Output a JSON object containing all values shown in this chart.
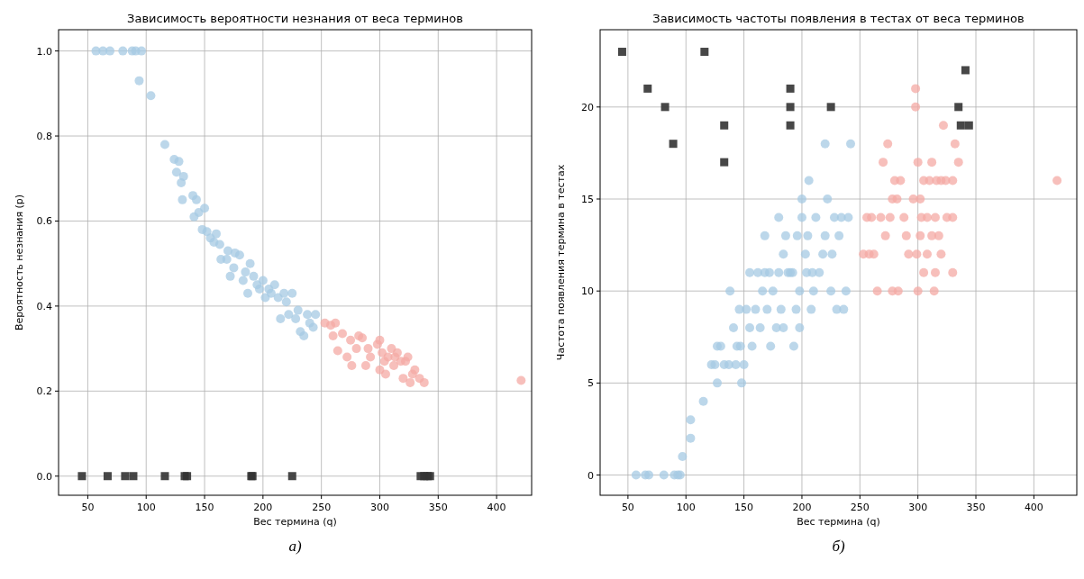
{
  "chart_data": [
    {
      "type": "scatter",
      "title": "Зависимость вероятности незнания от веса терминов",
      "xlabel": "Вес термина (q)",
      "ylabel": "Вероятность незнания (p)",
      "xlim": [
        25,
        430
      ],
      "ylim": [
        -0.045,
        1.05
      ],
      "xticks": [
        50,
        100,
        150,
        200,
        250,
        300,
        350,
        400
      ],
      "yticks": [
        {
          "value": 0,
          "label": "0.0"
        },
        0.2,
        0.4,
        0.6,
        0.8,
        {
          "value": 1,
          "label": "1.0"
        }
      ],
      "grid": true,
      "annotations": [
        "а)"
      ],
      "series": [
        {
          "color": "#a6cae3",
          "marker": "circle",
          "x": [
            57,
            63,
            69,
            80,
            88,
            91,
            96,
            94,
            104,
            116,
            124,
            128,
            126,
            130,
            132,
            131,
            140,
            143,
            145,
            141,
            150,
            148,
            152,
            155,
            158,
            160,
            163,
            164,
            169,
            170,
            172,
            175,
            176,
            180,
            183,
            185,
            187,
            189,
            192,
            195,
            197,
            200,
            202,
            205,
            207,
            210,
            213,
            215,
            218,
            220,
            222,
            225,
            228,
            230,
            232,
            235,
            238,
            240,
            243,
            245
          ],
          "values": [
            1,
            1,
            1,
            1,
            1,
            1,
            1,
            0.93,
            0.895,
            0.78,
            0.745,
            0.74,
            0.715,
            0.69,
            0.705,
            0.65,
            0.66,
            0.65,
            0.62,
            0.61,
            0.63,
            0.58,
            0.575,
            0.56,
            0.55,
            0.57,
            0.545,
            0.51,
            0.51,
            0.53,
            0.47,
            0.49,
            0.525,
            0.52,
            0.46,
            0.48,
            0.43,
            0.5,
            0.47,
            0.45,
            0.44,
            0.46,
            0.42,
            0.44,
            0.43,
            0.45,
            0.42,
            0.37,
            0.43,
            0.41,
            0.38,
            0.43,
            0.37,
            0.39,
            0.34,
            0.33,
            0.38,
            0.36,
            0.35,
            0.38
          ]
        },
        {
          "color": "#f4aaa4",
          "marker": "circle",
          "x": [
            253,
            258,
            262,
            260,
            264,
            268,
            272,
            275,
            276,
            280,
            282,
            285,
            288,
            290,
            292,
            298,
            300,
            300,
            302,
            304,
            305,
            307,
            310,
            312,
            313,
            315,
            318,
            320,
            322,
            324,
            326,
            328,
            330,
            334,
            338,
            421
          ],
          "values": [
            0.36,
            0.355,
            0.36,
            0.33,
            0.295,
            0.335,
            0.28,
            0.32,
            0.26,
            0.3,
            0.33,
            0.325,
            0.26,
            0.3,
            0.28,
            0.31,
            0.32,
            0.25,
            0.29,
            0.27,
            0.24,
            0.28,
            0.3,
            0.26,
            0.28,
            0.29,
            0.27,
            0.23,
            0.27,
            0.28,
            0.22,
            0.24,
            0.25,
            0.23,
            0.22,
            0.225
          ]
        },
        {
          "color": "#333333",
          "marker": "square",
          "x": [
            45,
            67,
            82,
            89,
            116,
            133,
            135,
            190,
            191,
            225,
            335,
            338,
            341,
            343
          ],
          "values": [
            0,
            0,
            0,
            0,
            0,
            0,
            0,
            0,
            0,
            0,
            0,
            0,
            0,
            0
          ]
        }
      ]
    },
    {
      "type": "scatter",
      "title": "Зависимость частоты появления в тестах от веса терминов",
      "xlabel": "Вес термина (q)",
      "ylabel": "Частота появления термина в тестах",
      "xlim": [
        26,
        437
      ],
      "ylim": [
        -1.1,
        24.2
      ],
      "xticks": [
        50,
        100,
        150,
        200,
        250,
        300,
        350,
        400
      ],
      "yticks": [
        0,
        5,
        10,
        15,
        20
      ],
      "grid": true,
      "annotations": [
        "б)"
      ],
      "series": [
        {
          "color": "#a6cae3",
          "marker": "circle",
          "x": [
            57,
            65,
            68,
            81,
            90,
            93,
            95,
            97,
            104,
            104,
            115,
            122,
            125,
            127,
            127,
            130,
            133,
            137,
            138,
            141,
            143,
            144,
            147,
            146,
            148,
            150,
            152,
            155,
            155,
            157,
            160,
            162,
            164,
            166,
            168,
            168,
            170,
            172,
            173,
            175,
            178,
            180,
            180,
            182,
            184,
            184,
            186,
            188,
            190,
            192,
            193,
            195,
            196,
            198,
            198,
            200,
            200,
            203,
            204,
            205,
            206,
            208,
            209,
            210,
            212,
            215,
            218,
            220,
            220,
            222,
            225,
            226,
            228,
            230,
            232,
            234,
            236,
            238,
            240,
            242
          ],
          "values": [
            0,
            0,
            0,
            0,
            0,
            0,
            0,
            1,
            2,
            3,
            4,
            6,
            6,
            5,
            7,
            7,
            6,
            6,
            10,
            8,
            6,
            7,
            7,
            9,
            5,
            6,
            9,
            8,
            11,
            7,
            9,
            11,
            8,
            10,
            11,
            13,
            9,
            11,
            7,
            10,
            8,
            14,
            11,
            9,
            8,
            12,
            13,
            11,
            11,
            11,
            7,
            9,
            13,
            10,
            8,
            14,
            15,
            12,
            11,
            13,
            16,
            9,
            11,
            10,
            14,
            11,
            12,
            18,
            13,
            15,
            10,
            12,
            14,
            9,
            13,
            14,
            9,
            10,
            14,
            18
          ]
        },
        {
          "color": "#f4aaa4",
          "marker": "circle",
          "x": [
            253,
            258,
            256,
            260,
            262,
            265,
            268,
            270,
            272,
            274,
            276,
            278,
            278,
            280,
            282,
            283,
            285,
            288,
            290,
            292,
            296,
            298,
            298,
            299,
            300,
            300,
            302,
            302,
            303,
            305,
            305,
            308,
            308,
            310,
            312,
            312,
            314,
            315,
            315,
            316,
            318,
            320,
            320,
            322,
            325,
            324,
            330,
            330,
            330,
            332,
            335,
            420
          ],
          "values": [
            12,
            12,
            14,
            14,
            12,
            10,
            14,
            17,
            13,
            18,
            14,
            15,
            10,
            16,
            15,
            10,
            16,
            14,
            13,
            12,
            15,
            20,
            21,
            12,
            10,
            17,
            13,
            15,
            14,
            16,
            11,
            12,
            14,
            16,
            13,
            17,
            10,
            11,
            14,
            16,
            13,
            12,
            16,
            19,
            14,
            16,
            16,
            11,
            14,
            18,
            17,
            16
          ]
        },
        {
          "color": "#333333",
          "marker": "square",
          "x": [
            45,
            67,
            82,
            89,
            116,
            133,
            133,
            190,
            190,
            190,
            225,
            335,
            341,
            337,
            344
          ],
          "values": [
            23,
            21,
            20,
            18,
            23,
            19,
            17,
            21,
            20,
            19,
            20,
            20,
            22,
            19,
            19
          ]
        }
      ]
    }
  ]
}
